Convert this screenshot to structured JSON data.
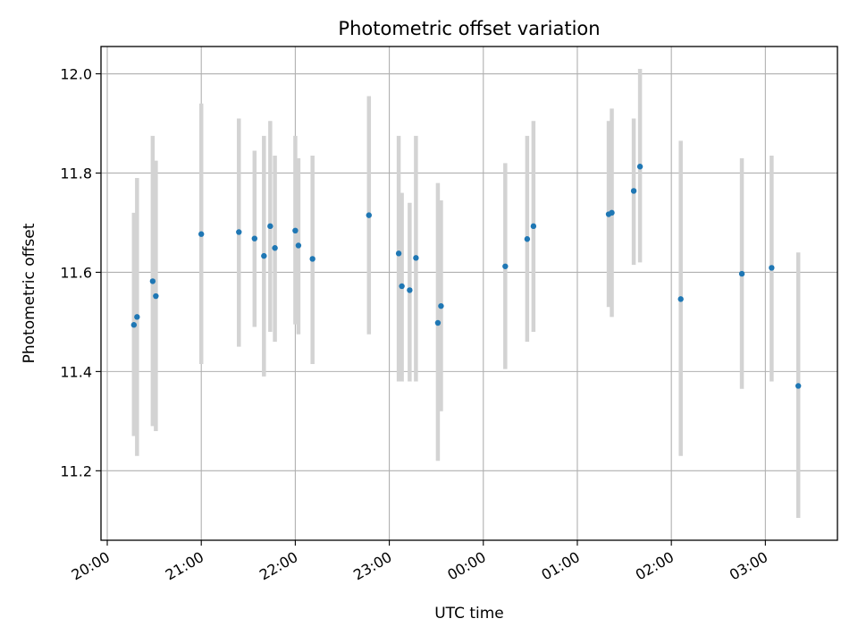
{
  "chart_data": {
    "type": "scatter",
    "title": "Photometric offset variation",
    "xlabel": "UTC time",
    "ylabel": "Photometric offset",
    "xticks": [
      "20:00",
      "21:00",
      "22:00",
      "23:00",
      "00:00",
      "01:00",
      "02:00",
      "03:00"
    ],
    "yticks": [
      "11.2",
      "11.4",
      "11.6",
      "11.8",
      "12.0"
    ],
    "ylim": [
      11.06,
      12.055
    ],
    "xlim": [
      "19:56",
      "03:46"
    ],
    "grid": true,
    "colors": {
      "point": "#1f77b4",
      "errorbar": "#d3d3d3",
      "grid": "#b0b0b0"
    },
    "points": [
      {
        "t": "20:17",
        "y": 11.494,
        "lo": 11.27,
        "hi": 11.72
      },
      {
        "t": "20:19",
        "y": 11.51,
        "lo": 11.23,
        "hi": 11.79
      },
      {
        "t": "20:29",
        "y": 11.582,
        "lo": 11.29,
        "hi": 11.875
      },
      {
        "t": "20:31",
        "y": 11.552,
        "lo": 11.28,
        "hi": 11.825
      },
      {
        "t": "21:00",
        "y": 11.677,
        "lo": 11.415,
        "hi": 11.94
      },
      {
        "t": "21:24",
        "y": 11.681,
        "lo": 11.45,
        "hi": 11.91
      },
      {
        "t": "21:34",
        "y": 11.668,
        "lo": 11.49,
        "hi": 11.845
      },
      {
        "t": "21:40",
        "y": 11.633,
        "lo": 11.39,
        "hi": 11.875
      },
      {
        "t": "21:44",
        "y": 11.693,
        "lo": 11.48,
        "hi": 11.905
      },
      {
        "t": "21:47",
        "y": 11.649,
        "lo": 11.46,
        "hi": 11.835
      },
      {
        "t": "22:00",
        "y": 11.684,
        "lo": 11.495,
        "hi": 11.875
      },
      {
        "t": "22:02",
        "y": 11.654,
        "lo": 11.475,
        "hi": 11.83
      },
      {
        "t": "22:11",
        "y": 11.627,
        "lo": 11.415,
        "hi": 11.835
      },
      {
        "t": "22:47",
        "y": 11.715,
        "lo": 11.475,
        "hi": 11.955
      },
      {
        "t": "23:06",
        "y": 11.638,
        "lo": 11.38,
        "hi": 11.875
      },
      {
        "t": "23:08",
        "y": 11.572,
        "lo": 11.38,
        "hi": 11.76
      },
      {
        "t": "23:13",
        "y": 11.564,
        "lo": 11.38,
        "hi": 11.74
      },
      {
        "t": "23:17",
        "y": 11.629,
        "lo": 11.38,
        "hi": 11.875
      },
      {
        "t": "23:31",
        "y": 11.498,
        "lo": 11.22,
        "hi": 11.78
      },
      {
        "t": "23:33",
        "y": 11.532,
        "lo": 11.32,
        "hi": 11.745
      },
      {
        "t": "00:14",
        "y": 11.612,
        "lo": 11.405,
        "hi": 11.82
      },
      {
        "t": "00:28",
        "y": 11.667,
        "lo": 11.46,
        "hi": 11.875
      },
      {
        "t": "00:32",
        "y": 11.693,
        "lo": 11.48,
        "hi": 11.905
      },
      {
        "t": "01:20",
        "y": 11.717,
        "lo": 11.53,
        "hi": 11.905
      },
      {
        "t": "01:22",
        "y": 11.72,
        "lo": 11.51,
        "hi": 11.93
      },
      {
        "t": "01:36",
        "y": 11.764,
        "lo": 11.615,
        "hi": 11.91
      },
      {
        "t": "01:40",
        "y": 11.813,
        "lo": 11.62,
        "hi": 12.01
      },
      {
        "t": "02:06",
        "y": 11.546,
        "lo": 11.23,
        "hi": 11.865
      },
      {
        "t": "02:45",
        "y": 11.597,
        "lo": 11.365,
        "hi": 11.83
      },
      {
        "t": "03:04",
        "y": 11.609,
        "lo": 11.38,
        "hi": 11.835
      },
      {
        "t": "03:21",
        "y": 11.371,
        "lo": 11.105,
        "hi": 11.64
      }
    ]
  }
}
